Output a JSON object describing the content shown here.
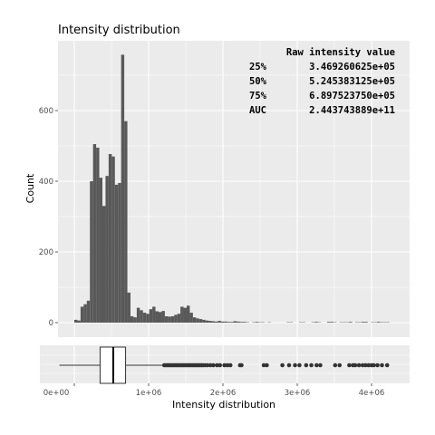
{
  "chart_data": {
    "type": "bar",
    "title": "Intensity distribution",
    "xlabel": "Intensity distribution",
    "ylabel": "Count",
    "xlim": [
      -200000,
      4400000
    ],
    "ylim": [
      -35,
      770
    ],
    "x_ticks": [
      {
        "value": 0,
        "label": "0e+00"
      },
      {
        "value": 1000000,
        "label": "1e+06"
      },
      {
        "value": 2000000,
        "label": "2e+06"
      },
      {
        "value": 3000000,
        "label": "3e+06"
      },
      {
        "value": 4000000,
        "label": "4e+06"
      }
    ],
    "y_ticks": [
      {
        "value": 0,
        "label": "0"
      },
      {
        "value": 200,
        "label": "200"
      },
      {
        "value": 400,
        "label": "400"
      },
      {
        "value": 600,
        "label": "600"
      }
    ],
    "grid": true,
    "bin_start": 0,
    "bin_width": 42000,
    "values": [
      8,
      6,
      45,
      52,
      62,
      400,
      505,
      495,
      410,
      330,
      415,
      477,
      470,
      390,
      395,
      758,
      570,
      85,
      18,
      15,
      42,
      35,
      28,
      25,
      38,
      45,
      32,
      30,
      33,
      18,
      17,
      18,
      22,
      25,
      45,
      42,
      48,
      28,
      15,
      12,
      10,
      8,
      6,
      5,
      4,
      3,
      5,
      3,
      3,
      2,
      2,
      4,
      3,
      2,
      2,
      1,
      0,
      1,
      2,
      1,
      1,
      0,
      1,
      0,
      0,
      0,
      0,
      0,
      1,
      1,
      0,
      0,
      1,
      1,
      0,
      0,
      1,
      2,
      1,
      0,
      0,
      2,
      2,
      1,
      0,
      1,
      1,
      1,
      2,
      0,
      1,
      1,
      2,
      2,
      0,
      1,
      1,
      2,
      1,
      1,
      1
    ],
    "boxplot": {
      "whisker_low": -200000,
      "q1": 346926,
      "median": 524538,
      "q3": 689752,
      "whisker_high": 1200000,
      "outliers": [
        1210000,
        1230000,
        1250000,
        1270000,
        1290000,
        1310000,
        1330000,
        1350000,
        1370000,
        1390000,
        1410000,
        1430000,
        1450000,
        1470000,
        1490000,
        1510000,
        1530000,
        1550000,
        1570000,
        1590000,
        1610000,
        1630000,
        1650000,
        1670000,
        1690000,
        1710000,
        1730000,
        1760000,
        1790000,
        1830000,
        1870000,
        1920000,
        1960000,
        2020000,
        2060000,
        2100000,
        2230000,
        2250000,
        2550000,
        2590000,
        2800000,
        2890000,
        2970000,
        3030000,
        3120000,
        3190000,
        3260000,
        3310000,
        3510000,
        3570000,
        3700000,
        3750000,
        3780000,
        3830000,
        3880000,
        3920000,
        3960000,
        4000000,
        4030000,
        4080000,
        4140000,
        4210000
      ]
    },
    "annotation": {
      "header": "Raw intensity value",
      "rows": [
        {
          "label": "25%",
          "value": "3.469260625e+05"
        },
        {
          "label": "50%",
          "value": "5.245383125e+05"
        },
        {
          "label": "75%",
          "value": "6.897523750e+05"
        },
        {
          "label": "AUC",
          "value": "2.443743889e+11"
        }
      ]
    },
    "colors": {
      "panel": "#ebebeb",
      "grid": "#ffffff",
      "bar": "#595959",
      "point": "#333333"
    }
  }
}
